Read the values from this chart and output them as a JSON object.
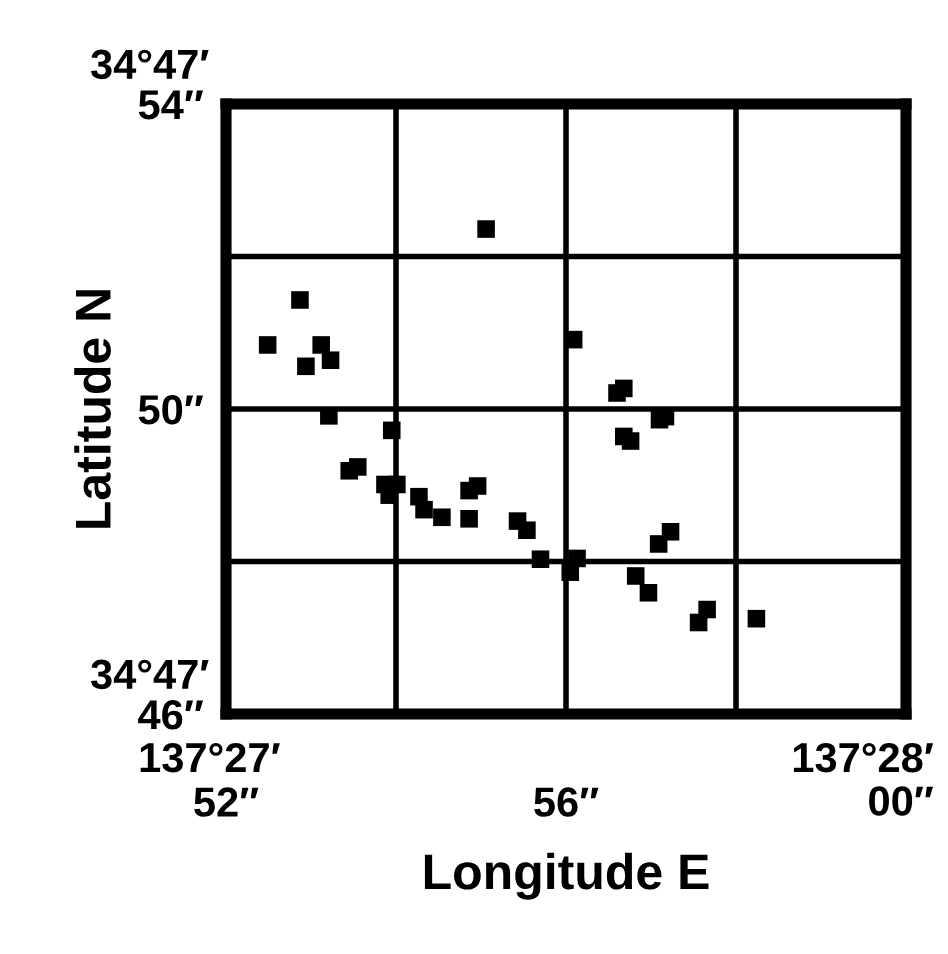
{
  "chart_data": {
    "type": "scatter",
    "xlabel": "Longitude E",
    "ylabel": "Latitude N",
    "x": [
      55.06,
      52.87,
      52.49,
      53.12,
      53.23,
      52.94,
      53.21,
      53.95,
      53.45,
      53.55,
      53.87,
      54.01,
      53.92,
      54.27,
      54.33,
      54.54,
      54.86,
      54.96,
      54.86,
      55.43,
      55.54,
      55.7,
      56.09,
      56.13,
      56.05,
      56.6,
      56.68,
      56.68,
      56.76,
      57.1,
      57.17,
      57.09,
      57.23,
      56.82,
      56.97,
      57.56,
      57.66,
      58.24
    ],
    "series": [
      {
        "color": "#000000",
        "values": [
          52.36,
          51.43,
          50.84,
          50.84,
          50.64,
          50.56,
          49.91,
          49.72,
          49.19,
          49.24,
          49.01,
          49.01,
          48.87,
          48.85,
          48.68,
          48.58,
          48.93,
          48.99,
          48.56,
          48.53,
          48.41,
          48.03,
          50.91,
          48.04,
          47.86,
          50.21,
          50.27,
          49.64,
          49.58,
          49.86,
          49.9,
          48.23,
          48.39,
          47.81,
          47.59,
          47.2,
          47.37,
          47.25
        ]
      }
    ],
    "xlim": [
      52,
      60
    ],
    "ylim": [
      46,
      54
    ],
    "xticks": [
      {
        "value": 52,
        "label": "52″"
      },
      {
        "value": 54,
        "label": null
      },
      {
        "value": 56,
        "label": "56″"
      },
      {
        "value": 58,
        "label": null
      },
      {
        "value": 60,
        "label": null
      }
    ],
    "yticks": [
      {
        "value": 46,
        "label": "46″"
      },
      {
        "value": 48,
        "label": null
      },
      {
        "value": 50,
        "label": "50″"
      },
      {
        "value": 52,
        "label": null
      },
      {
        "value": 54,
        "label": "54″"
      }
    ],
    "annotations": [
      "34°47′",
      "34°47′",
      "137°27′",
      "137°28′\n00″"
    ],
    "grid": true,
    "marker": "square",
    "legend": false
  }
}
